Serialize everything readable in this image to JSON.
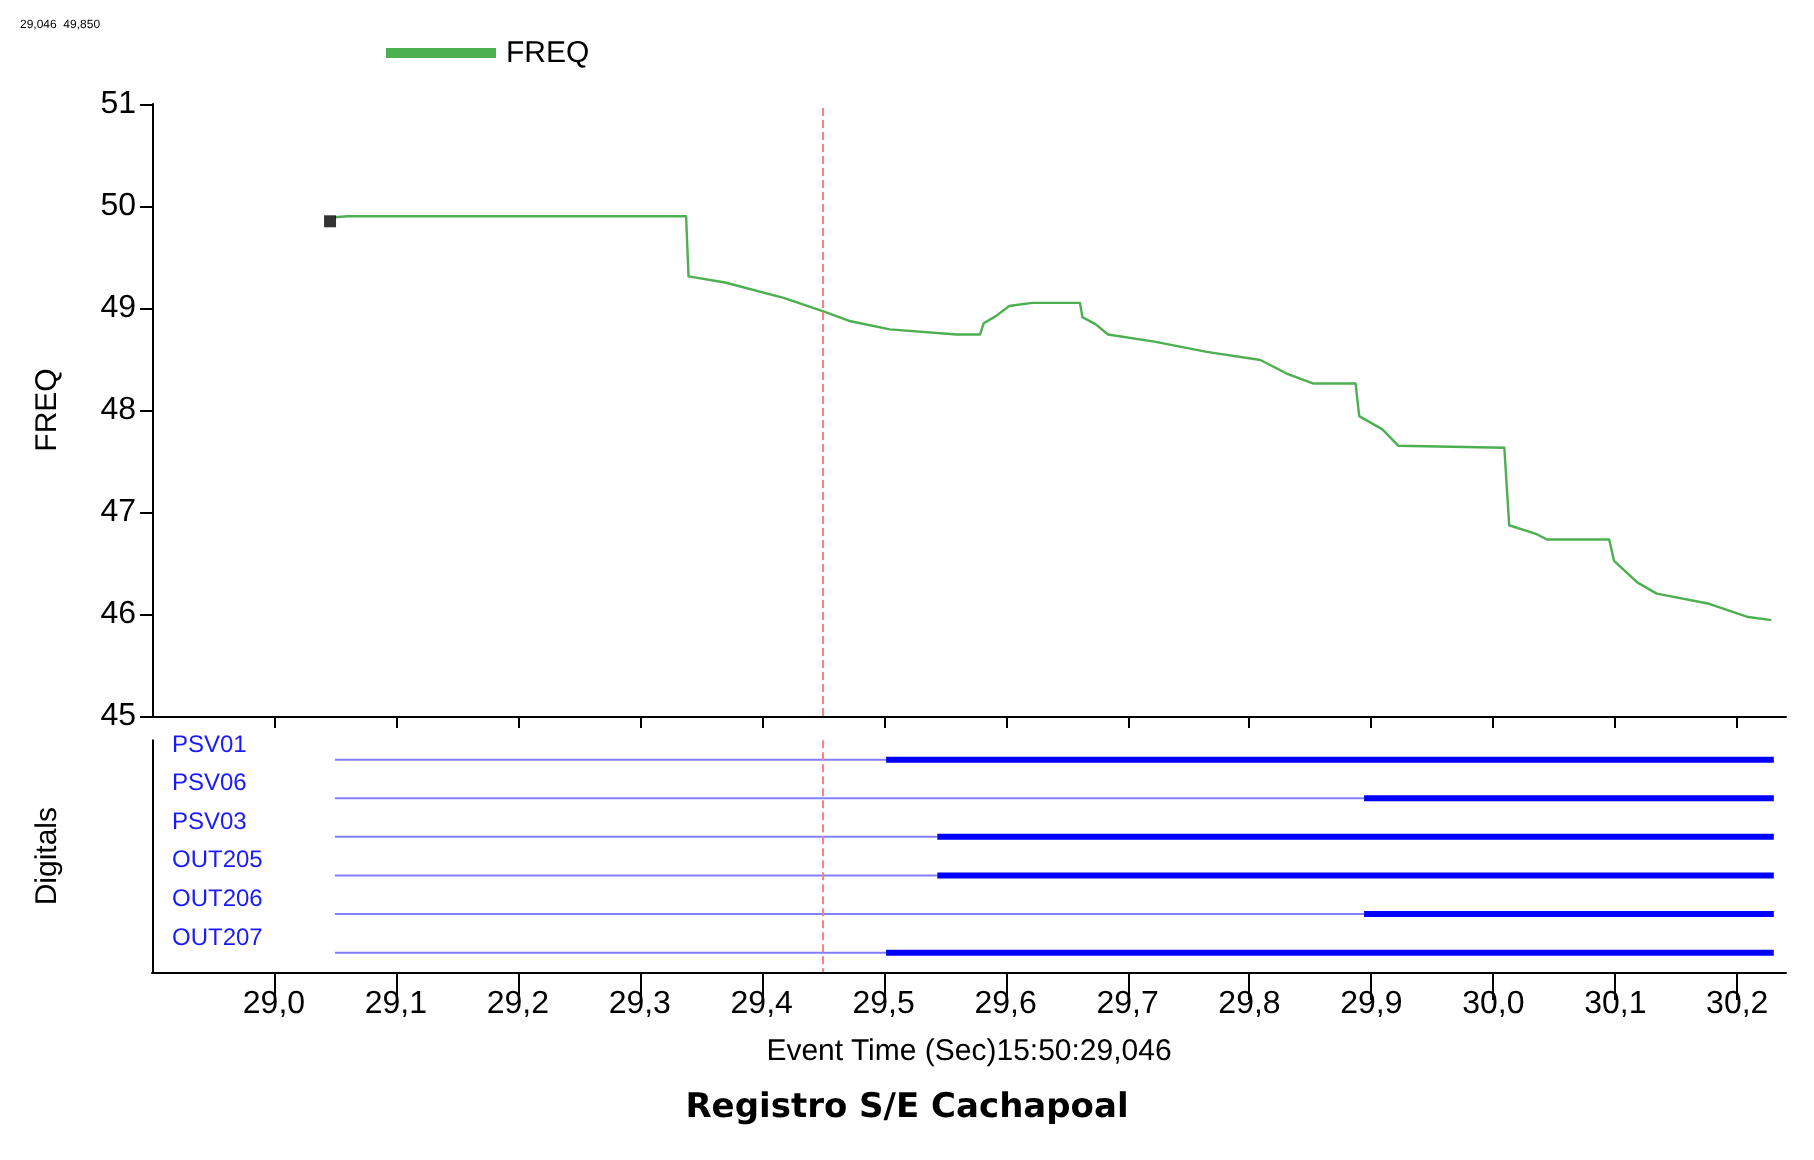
{
  "chart_data": [
    {
      "type": "line",
      "annotations": [
        "29,046  49,850"
      ],
      "ylabel": "FREQ",
      "legend": "top left",
      "grid": false,
      "tick_labels": "y",
      "marker": "none",
      "xlim": [
        28.9,
        30.24
      ],
      "xticks": [
        {
          "value": 29,
          "label": null
        },
        {
          "value": 29.1,
          "label": null
        },
        {
          "value": 29.2,
          "label": null
        },
        {
          "value": 29.3,
          "label": null
        },
        {
          "value": 29.4,
          "label": null
        },
        {
          "value": 29.5,
          "label": null
        },
        {
          "value": 29.6,
          "label": null
        },
        {
          "value": 29.7,
          "label": null
        },
        {
          "value": 29.8,
          "label": null
        },
        {
          "value": 29.9,
          "label": null
        },
        {
          "value": 30,
          "label": null
        },
        {
          "value": 30.1,
          "label": null
        },
        {
          "value": 30.2,
          "label": null
        }
      ],
      "ylim": [
        45,
        51
      ],
      "yticks": [
        45,
        46,
        47,
        48,
        49,
        50,
        51
      ],
      "ref_lines": [
        {
          "axis": "x",
          "value": 29.45,
          "color": "#ff8080",
          "line_style": "dashed"
        }
      ],
      "series": [
        {
          "name": "FREQ",
          "color": "#4caf50",
          "x": [
            29.05,
            29.06,
            29.338,
            29.34,
            29.37,
            29.418,
            29.45,
            29.473,
            29.505,
            29.56,
            29.579,
            29.582,
            29.592,
            29.603,
            29.622,
            29.661,
            29.663,
            29.674,
            29.684,
            29.722,
            29.765,
            29.809,
            29.83,
            29.852,
            29.887,
            29.89,
            29.909,
            29.922,
            30.009,
            30.013,
            30.036,
            30.044,
            30.095,
            30.099,
            30.118,
            30.134,
            30.177,
            30.209,
            30.228
          ],
          "values": [
            49.89,
            49.9,
            49.9,
            49.31,
            49.25,
            49.1,
            48.97,
            48.87,
            48.79,
            48.74,
            48.74,
            48.85,
            48.92,
            49.02,
            49.05,
            49.05,
            48.91,
            48.84,
            48.74,
            48.67,
            48.57,
            48.49,
            48.36,
            48.26,
            48.26,
            47.94,
            47.81,
            47.65,
            47.63,
            46.87,
            46.78,
            46.73,
            46.73,
            46.52,
            46.31,
            46.2,
            46.1,
            45.97,
            45.94
          ]
        },
        {
          "type": "scatter",
          "marker": "square",
          "color": "#000000",
          "x": [
            29.046
          ],
          "values": [
            49.85
          ]
        }
      ]
    },
    {
      "type": "bar",
      "orientation": "horizontal",
      "ylabel": "Digitals",
      "xlabel": "Event Time (Sec)15:50:29,046",
      "annotations": [
        "Registro S/E Cachapoal"
      ],
      "categories": [
        "PSV01",
        "PSV06",
        "PSV03",
        "OUT205",
        "OUT206",
        "OUT207"
      ],
      "xlim": [
        28.9,
        30.24
      ],
      "xticks": [
        {
          "value": 29,
          "label": "29,0"
        },
        {
          "value": 29.1,
          "label": "29,1"
        },
        {
          "value": 29.2,
          "label": "29,2"
        },
        {
          "value": 29.3,
          "label": "29,3"
        },
        {
          "value": 29.4,
          "label": "29,4"
        },
        {
          "value": 29.5,
          "label": "29,5"
        },
        {
          "value": 29.6,
          "label": "29,6"
        },
        {
          "value": 29.7,
          "label": "29,7"
        },
        {
          "value": 29.8,
          "label": "29,8"
        },
        {
          "value": 29.9,
          "label": "29,9"
        },
        {
          "value": 30,
          "label": "30,0"
        },
        {
          "value": 30.1,
          "label": "30,1"
        },
        {
          "value": 30.2,
          "label": "30,2"
        }
      ],
      "ref_lines": [
        {
          "axis": "x",
          "value": 29.45,
          "color": "#ff8080",
          "line_style": "dashed"
        }
      ],
      "series": [
        {
          "color": "#8080ff",
          "base": [
            29.05,
            29.05,
            29.05,
            29.05,
            29.05,
            29.05
          ],
          "values": [
            0.452,
            0.844,
            0.494,
            0.494,
            0.844,
            0.452
          ]
        },
        {
          "color": "#0000ff",
          "base": [
            29.502,
            29.894,
            29.544,
            29.544,
            29.894,
            29.502
          ],
          "values": [
            0.728,
            0.336,
            0.686,
            0.686,
            0.336,
            0.728
          ]
        }
      ]
    }
  ]
}
